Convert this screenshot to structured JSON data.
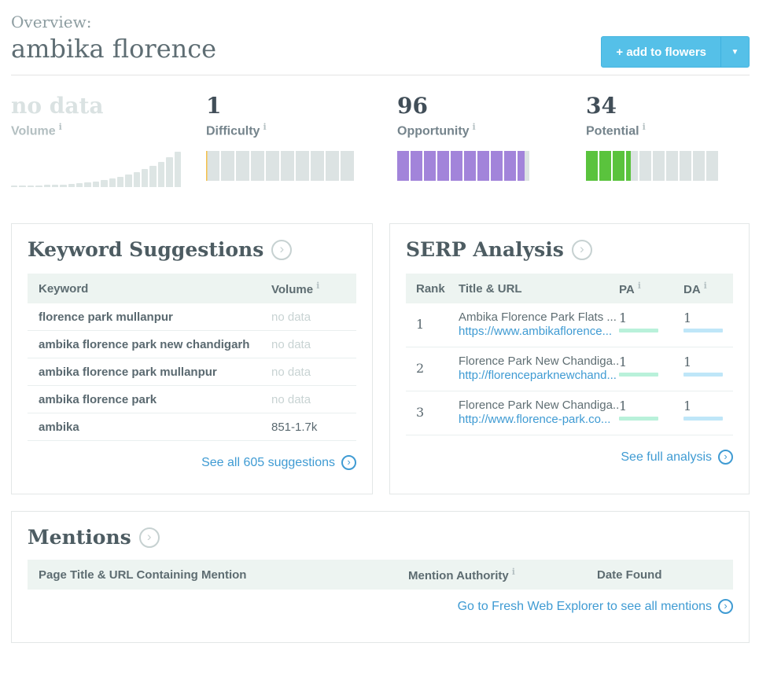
{
  "header": {
    "kicker": "Overview:",
    "title": "ambika florence",
    "add_button": {
      "label": "+ add to flowers",
      "caret": "▼"
    }
  },
  "metrics": {
    "volume": {
      "value": "no data",
      "label": "Volume",
      "info": "i"
    },
    "difficulty": {
      "value": "1",
      "label": "Difficulty",
      "info": "i",
      "percent": 1,
      "color": "#f5c04a"
    },
    "opportunity": {
      "value": "96",
      "label": "Opportunity",
      "info": "i",
      "percent": 96,
      "color": "#a284da"
    },
    "potential": {
      "value": "34",
      "label": "Potential",
      "info": "i",
      "percent": 34,
      "color": "#5ac33d"
    },
    "volume_histogram": [
      2,
      2,
      2,
      2,
      3,
      3,
      3,
      4,
      5,
      6,
      7,
      9,
      11,
      13,
      16,
      19,
      23,
      27,
      32,
      38,
      45
    ]
  },
  "keyword_suggestions": {
    "title": "Keyword Suggestions",
    "columns": {
      "keyword": "Keyword",
      "volume": "Volume",
      "volume_info": "i"
    },
    "rows": [
      {
        "keyword": "florence park mullanpur",
        "volume": "no data"
      },
      {
        "keyword": "ambika florence park new chandigarh",
        "volume": "no data"
      },
      {
        "keyword": "ambika florence park mullanpur",
        "volume": "no data"
      },
      {
        "keyword": "ambika florence park",
        "volume": "no data"
      },
      {
        "keyword": "ambika",
        "volume": "851-1.7k"
      }
    ],
    "footer_link": "See all 605 suggestions"
  },
  "serp_analysis": {
    "title": "SERP Analysis",
    "columns": {
      "rank": "Rank",
      "title_url": "Title & URL",
      "pa": "PA",
      "pa_info": "i",
      "da": "DA",
      "da_info": "i"
    },
    "rows": [
      {
        "rank": "1",
        "title": "Ambika Florence Park Flats ...",
        "url": "https://www.ambikaflorence...",
        "pa": "1",
        "da": "1"
      },
      {
        "rank": "2",
        "title": "Florence Park New Chandiga...",
        "url": "http://florenceparknewchand...",
        "pa": "1",
        "da": "1"
      },
      {
        "rank": "3",
        "title": "Florence Park New Chandiga...",
        "url": "http://www.florence-park.co...",
        "pa": "1",
        "da": "1"
      }
    ],
    "footer_link": "See full analysis"
  },
  "mentions": {
    "title": "Mentions",
    "columns": {
      "page": "Page Title & URL Containing Mention",
      "authority": "Mention Authority",
      "authority_info": "i",
      "date": "Date Found"
    },
    "rows": [],
    "footer_link": "Go to Fresh Web Explorer to see all mentions"
  },
  "icons": {
    "heading_arrow": "›",
    "footer_arrow": "›"
  },
  "colors": {
    "accent_blue": "#55c0e8",
    "link_blue": "#3f9bd3",
    "purple": "#a284da",
    "green": "#5ac33d",
    "difficulty_orange": "#f5c04a",
    "pa_bar": "#b9f1da",
    "da_bar": "#bfe6f8",
    "table_header_bg": "#edf4f1"
  }
}
